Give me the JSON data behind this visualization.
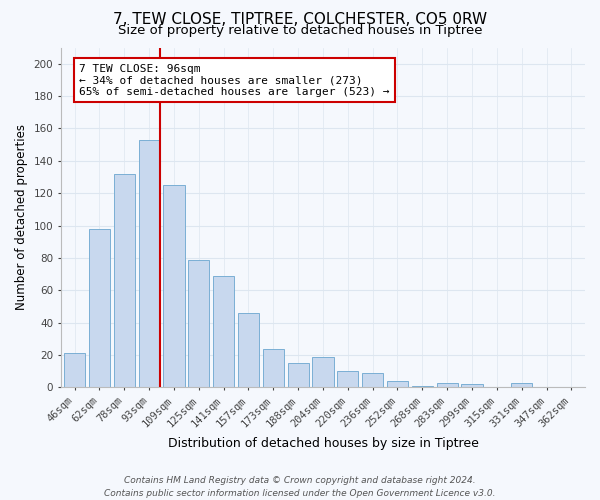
{
  "title": "7, TEW CLOSE, TIPTREE, COLCHESTER, CO5 0RW",
  "subtitle": "Size of property relative to detached houses in Tiptree",
  "xlabel": "Distribution of detached houses by size in Tiptree",
  "ylabel": "Number of detached properties",
  "bar_labels": [
    "46sqm",
    "62sqm",
    "78sqm",
    "93sqm",
    "109sqm",
    "125sqm",
    "141sqm",
    "157sqm",
    "173sqm",
    "188sqm",
    "204sqm",
    "220sqm",
    "236sqm",
    "252sqm",
    "268sqm",
    "283sqm",
    "299sqm",
    "315sqm",
    "331sqm",
    "347sqm",
    "362sqm"
  ],
  "bar_values": [
    21,
    98,
    132,
    153,
    125,
    79,
    69,
    46,
    24,
    15,
    19,
    10,
    9,
    4,
    1,
    3,
    2,
    0,
    3,
    0,
    0
  ],
  "bar_color": "#c8d8ee",
  "bar_edge_color": "#7aafd4",
  "vline_color": "#cc0000",
  "ylim": [
    0,
    210
  ],
  "yticks": [
    0,
    20,
    40,
    60,
    80,
    100,
    120,
    140,
    160,
    180,
    200
  ],
  "annotation_line1": "7 TEW CLOSE: 96sqm",
  "annotation_line2": "← 34% of detached houses are smaller (273)",
  "annotation_line3": "65% of semi-detached houses are larger (523) →",
  "annotation_box_color": "#ffffff",
  "annotation_box_edge": "#cc0000",
  "footer_line1": "Contains HM Land Registry data © Crown copyright and database right 2024.",
  "footer_line2": "Contains public sector information licensed under the Open Government Licence v3.0.",
  "background_color": "#f5f8fd",
  "grid_color": "#dde6f0",
  "title_fontsize": 11,
  "subtitle_fontsize": 9.5,
  "tick_fontsize": 7.5,
  "ylabel_fontsize": 8.5,
  "xlabel_fontsize": 9,
  "annotation_fontsize": 8,
  "footer_fontsize": 6.5
}
